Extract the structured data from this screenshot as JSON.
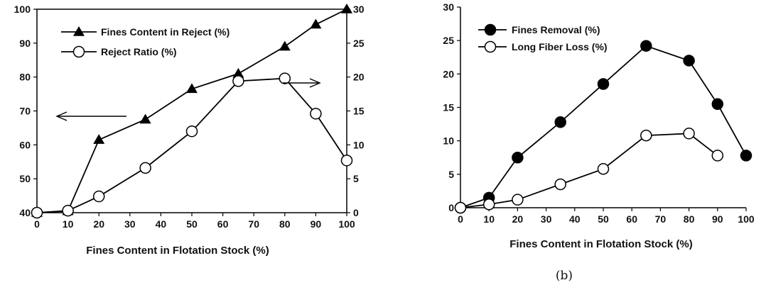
{
  "chart_data": [
    {
      "type": "line",
      "xlabel": "Fines Content in Flotation Stock (%)",
      "x_ticks": [
        "0",
        "10",
        "20",
        "30",
        "40",
        "50",
        "60",
        "70",
        "80",
        "90",
        "100"
      ],
      "xlim": [
        0,
        100
      ],
      "ylim_left": [
        40,
        100
      ],
      "y_ticks_left": [
        "40",
        "50",
        "60",
        "70",
        "80",
        "90",
        "100"
      ],
      "ylim_right": [
        0,
        30
      ],
      "y_ticks_right": [
        "0",
        "5",
        "10",
        "15",
        "20",
        "25",
        "30"
      ],
      "legend_position": "top-left",
      "annotations": [
        "arrow pointing left to left axis",
        "arrow pointing right to right axis"
      ],
      "series": [
        {
          "name": "Fines Content in Reject (%)",
          "marker": "triangle-filled",
          "axis": "left",
          "x": [
            0,
            10,
            20,
            35,
            50,
            65,
            80,
            90,
            100
          ],
          "y": [
            40,
            40.5,
            61.5,
            67.5,
            76.5,
            81,
            89,
            95.5,
            100
          ]
        },
        {
          "name": "Reject Ratio (%)",
          "marker": "circle-open",
          "axis": "right",
          "x": [
            0,
            10,
            20,
            35,
            50,
            65,
            80,
            90,
            100
          ],
          "y": [
            0,
            0.3,
            2.4,
            6.6,
            12,
            19.4,
            19.8,
            14.6,
            7.7
          ]
        }
      ]
    },
    {
      "type": "line",
      "panel_label": "(b)",
      "xlabel": "Fines Content in Flotation Stock (%)",
      "x_ticks": [
        "0",
        "10",
        "20",
        "30",
        "40",
        "50",
        "60",
        "70",
        "80",
        "90",
        "100"
      ],
      "xlim": [
        0,
        100
      ],
      "ylim": [
        0,
        30
      ],
      "y_ticks": [
        "0",
        "5",
        "10",
        "15",
        "20",
        "25",
        "30"
      ],
      "legend_position": "top-left",
      "series": [
        {
          "name": "Fines Removal (%)",
          "marker": "circle-filled",
          "x": [
            0,
            10,
            20,
            35,
            50,
            65,
            80,
            90,
            100
          ],
          "y": [
            0,
            1.5,
            7.5,
            12.8,
            18.5,
            24.2,
            22,
            15.5,
            7.8
          ]
        },
        {
          "name": "Long Fiber Loss (%)",
          "marker": "circle-open",
          "x": [
            0,
            10,
            20,
            35,
            50,
            65,
            80,
            90
          ],
          "y": [
            0,
            0.5,
            1.2,
            3.5,
            5.8,
            10.8,
            11.1,
            7.8
          ]
        }
      ]
    }
  ]
}
